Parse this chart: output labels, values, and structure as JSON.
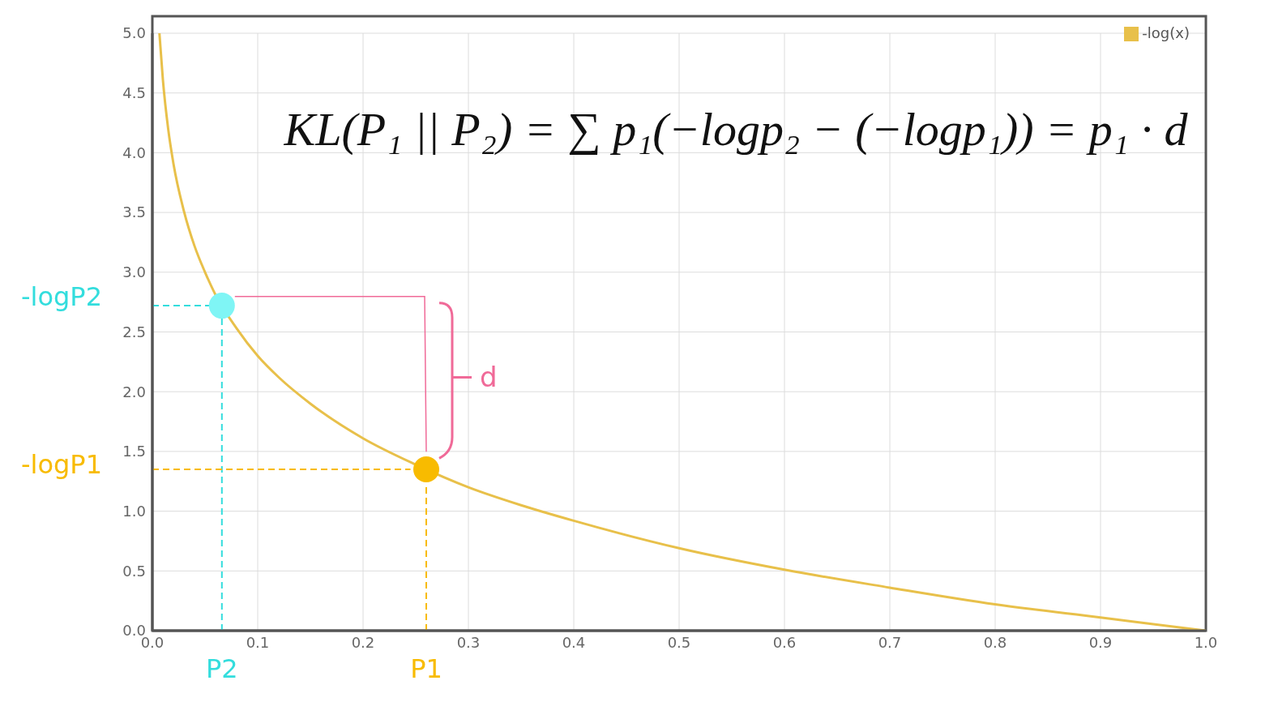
{
  "chart_data": {
    "type": "line",
    "series": [
      {
        "name": "-log(x)",
        "color": "#e8c04a",
        "x": [
          0.0067,
          0.01,
          0.015,
          0.02,
          0.03,
          0.04,
          0.05,
          0.06,
          0.08,
          0.1,
          0.12,
          0.15,
          0.2,
          0.25,
          0.3,
          0.35,
          0.4,
          0.5,
          0.6,
          0.7,
          0.8,
          0.9,
          1.0
        ],
        "values": [
          5.0,
          4.61,
          4.2,
          3.91,
          3.51,
          3.22,
          3.0,
          2.81,
          2.53,
          2.3,
          2.12,
          1.9,
          1.61,
          1.39,
          1.2,
          1.05,
          0.92,
          0.69,
          0.51,
          0.36,
          0.22,
          0.11,
          0
        ]
      },
      {
        "color": "#33dddd",
        "line_style": "dashed",
        "x": [
          0,
          0.066
        ],
        "values": [
          2.72,
          2.72
        ]
      },
      {
        "color": "#33dddd",
        "line_style": "dashed",
        "x": [
          0.066,
          0.066
        ],
        "values": [
          0,
          2.72
        ]
      },
      {
        "color": "#f8bb00",
        "line_style": "dashed",
        "x": [
          0,
          0.245
        ],
        "values": [
          1.35,
          1.35
        ]
      },
      {
        "color": "#f8bb00",
        "line_style": "dashed",
        "x": [
          0.26,
          0.26
        ],
        "values": [
          0,
          1.22
        ]
      },
      {
        "type": "scatter",
        "color": "#7ff5f5",
        "x": [
          0.066
        ],
        "values": [
          2.72
        ]
      },
      {
        "type": "scatter",
        "color": "#f8bb00",
        "x": [
          0.26
        ],
        "values": [
          1.35
        ]
      }
    ],
    "xlim": [
      0,
      1
    ],
    "ylim": [
      0,
      5
    ],
    "xticks": [
      {
        "value": 0,
        "label": "0.0"
      },
      0.1,
      0.2,
      0.3,
      0.4,
      0.5,
      0.6,
      0.7,
      0.8,
      0.9,
      {
        "value": 1,
        "label": "1.0"
      }
    ],
    "yticks": [
      {
        "value": 0,
        "label": "0.0"
      },
      0.5,
      {
        "value": 1,
        "label": "1.0"
      },
      1.5,
      {
        "value": 2,
        "label": "2.0"
      },
      2.5,
      {
        "value": 3,
        "label": "3.0"
      },
      3.5,
      {
        "value": 4,
        "label": "4.0"
      },
      4.5,
      {
        "value": 5,
        "label": "5.0"
      }
    ],
    "grid": true,
    "legend": "top right",
    "line_style": "solid",
    "annotations": [
      "KL(P₁ || P₂) = ∑ p₁(−logp₂ − (−logp₁)) = p₁ · d",
      "d",
      {
        "text": "-logP2",
        "x": 0,
        "y": 2.72
      },
      {
        "text": "P2",
        "x": 0.066,
        "y": 0
      },
      {
        "text": "-logP1",
        "x": 0,
        "y": 1.35
      },
      {
        "text": "P1",
        "x": 0.26,
        "y": 0
      }
    ]
  }
}
